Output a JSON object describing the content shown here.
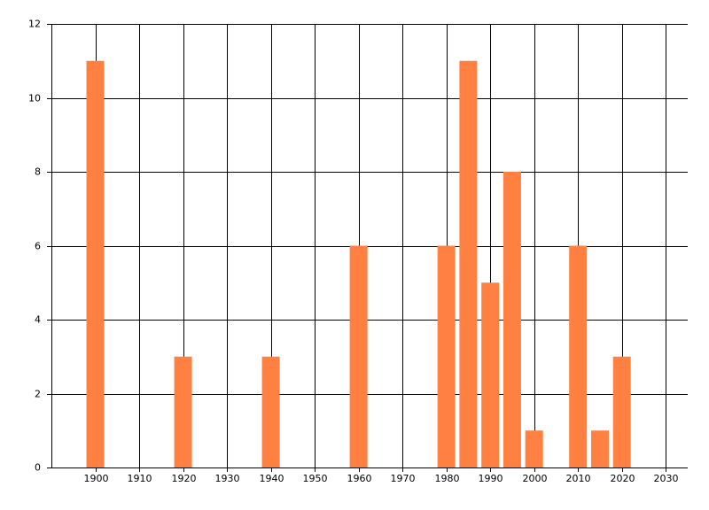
{
  "chart_data": {
    "type": "bar",
    "x": [
      1900,
      1920,
      1940,
      1960,
      1980,
      1985,
      1990,
      1995,
      2000,
      2010,
      2015,
      2020
    ],
    "values": [
      11,
      3,
      3,
      6,
      6,
      11,
      5,
      8,
      1,
      6,
      1,
      3
    ],
    "color": "#ff8040",
    "xlim": [
      1890,
      2035
    ],
    "xticks": [
      1900,
      1910,
      1920,
      1930,
      1940,
      1950,
      1960,
      1970,
      1980,
      1990,
      2000,
      2010,
      2020,
      2030
    ],
    "ylim": [
      0,
      12
    ],
    "yticks": [
      0,
      2,
      4,
      6,
      8,
      10,
      12
    ],
    "grid": true
  }
}
